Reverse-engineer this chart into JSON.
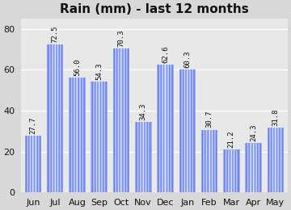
{
  "title": "Rain (mm) - last 12 months",
  "months": [
    "Jun",
    "Jul",
    "Aug",
    "Sep",
    "Oct",
    "Nov",
    "Dec",
    "Jan",
    "Feb",
    "Mar",
    "Apr",
    "May"
  ],
  "values": [
    27.7,
    72.5,
    56.0,
    54.3,
    70.3,
    34.3,
    62.6,
    60.3,
    30.7,
    21.2,
    24.3,
    31.8
  ],
  "ylim": [
    0,
    85
  ],
  "yticks": [
    0,
    20,
    40,
    60,
    80
  ],
  "bar_width": 0.75,
  "bg_color": "#d8d8d8",
  "plot_bg_color": "#e8e8e8",
  "grid_color": "#ffffff",
  "label_color": "#111111",
  "title_color": "#111111",
  "title_fontsize": 11,
  "label_fontsize": 6.5,
  "tick_fontsize": 8,
  "bar_edge_color": "#3333cc",
  "bar_mid_color": "#ffffff",
  "bar_stripe_color": "#4466ff"
}
